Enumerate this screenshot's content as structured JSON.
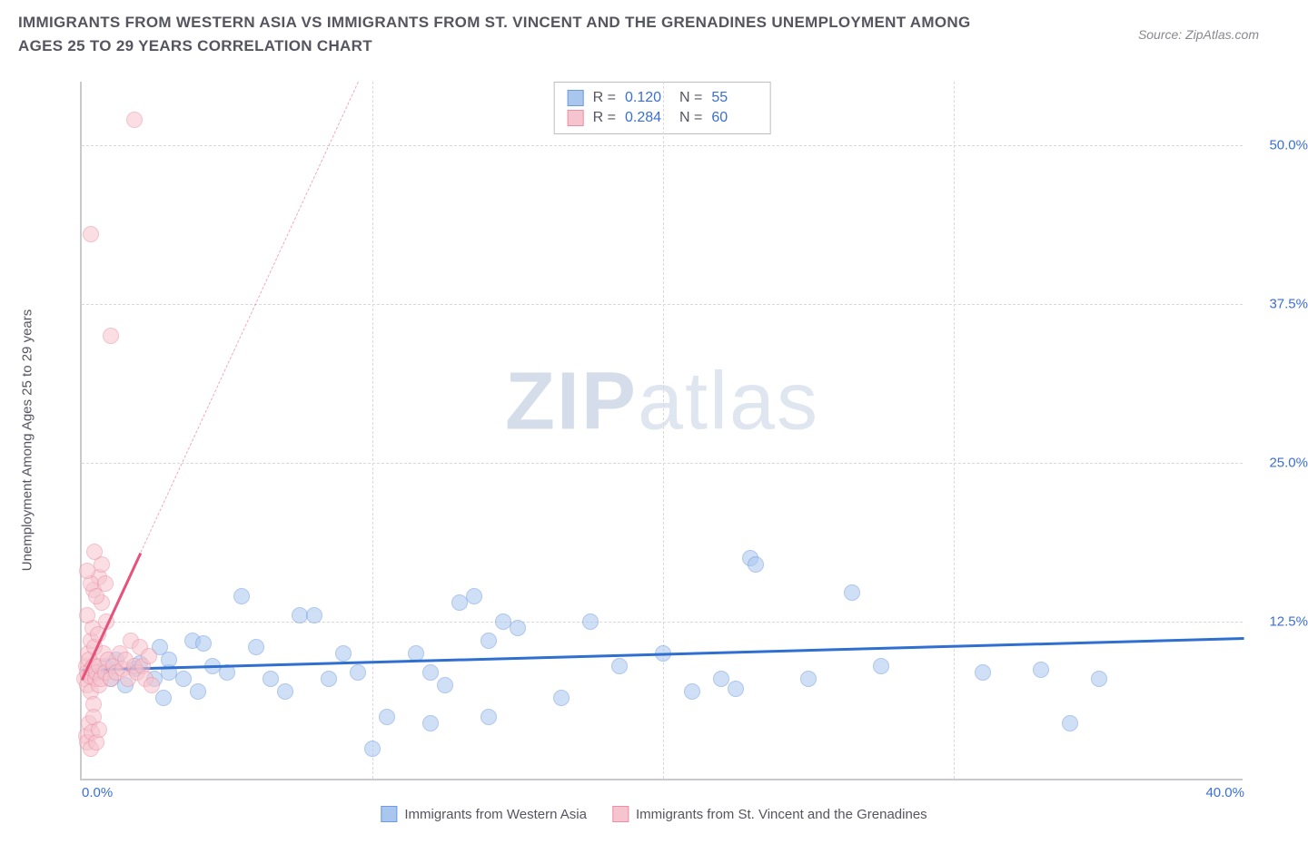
{
  "title": "IMMIGRANTS FROM WESTERN ASIA VS IMMIGRANTS FROM ST. VINCENT AND THE GRENADINES UNEMPLOYMENT AMONG AGES 25 TO 29 YEARS CORRELATION CHART",
  "source": "Source: ZipAtlas.com",
  "ylabel": "Unemployment Among Ages 25 to 29 years",
  "watermark_a": "ZIP",
  "watermark_b": "atlas",
  "chart": {
    "type": "scatter",
    "background_color": "#ffffff",
    "grid_color": "#d8d8de",
    "axis_color": "#c9c9d0",
    "xlim": [
      0,
      40
    ],
    "ylim": [
      0,
      55
    ],
    "xticks": [
      0,
      10,
      20,
      30,
      40
    ],
    "xticklabels": [
      "0.0%",
      "",
      "",
      "",
      "40.0%"
    ],
    "yticks": [
      12.5,
      25,
      37.5,
      50
    ],
    "yticklabels": [
      "12.5%",
      "25.0%",
      "37.5%",
      "50.0%"
    ],
    "tick_color": "#3b6fd6",
    "tick_fontsize": 15,
    "label_fontsize": 15,
    "label_color": "#555560",
    "point_radius": 9,
    "point_opacity": 0.55
  },
  "series": [
    {
      "name": "Immigrants from Western Asia",
      "color_fill": "#a9c6ef",
      "color_stroke": "#6d9be0",
      "trend_color": "#2f6fd0",
      "R": "0.120",
      "N": "55",
      "trend": {
        "x1": 0,
        "y1": 8.8,
        "x2": 40,
        "y2": 11.3
      },
      "points": [
        [
          0.5,
          8.5
        ],
        [
          0.8,
          9.0
        ],
        [
          1.0,
          8.0
        ],
        [
          1.2,
          9.5
        ],
        [
          1.5,
          7.5
        ],
        [
          1.8,
          8.8
        ],
        [
          2.0,
          9.2
        ],
        [
          2.5,
          8.0
        ],
        [
          2.7,
          10.5
        ],
        [
          2.8,
          6.5
        ],
        [
          3.0,
          8.5
        ],
        [
          3.0,
          9.5
        ],
        [
          3.5,
          8.0
        ],
        [
          3.8,
          11.0
        ],
        [
          4.0,
          7.0
        ],
        [
          4.2,
          10.8
        ],
        [
          4.5,
          9.0
        ],
        [
          5.0,
          8.5
        ],
        [
          5.5,
          14.5
        ],
        [
          6.0,
          10.5
        ],
        [
          6.5,
          8.0
        ],
        [
          7.0,
          7.0
        ],
        [
          7.5,
          13.0
        ],
        [
          8.0,
          13.0
        ],
        [
          8.5,
          8.0
        ],
        [
          9.0,
          10.0
        ],
        [
          9.5,
          8.5
        ],
        [
          10.0,
          2.5
        ],
        [
          10.5,
          5.0
        ],
        [
          11.5,
          10.0
        ],
        [
          12.0,
          4.5
        ],
        [
          12.0,
          8.5
        ],
        [
          12.5,
          7.5
        ],
        [
          13.0,
          14.0
        ],
        [
          13.5,
          14.5
        ],
        [
          14.0,
          11.0
        ],
        [
          14.5,
          12.5
        ],
        [
          14.0,
          5.0
        ],
        [
          15.0,
          12.0
        ],
        [
          16.5,
          6.5
        ],
        [
          17.5,
          12.5
        ],
        [
          18.5,
          9.0
        ],
        [
          20.0,
          10.0
        ],
        [
          21.0,
          7.0
        ],
        [
          22.0,
          8.0
        ],
        [
          23.0,
          17.5
        ],
        [
          23.2,
          17.0
        ],
        [
          22.5,
          7.2
        ],
        [
          25.0,
          8.0
        ],
        [
          26.5,
          14.8
        ],
        [
          27.5,
          9.0
        ],
        [
          31.0,
          8.5
        ],
        [
          34.0,
          4.5
        ],
        [
          33.0,
          8.7
        ],
        [
          35.0,
          8.0
        ]
      ]
    },
    {
      "name": "Immigrants from St. Vincent and the Grenadines",
      "color_fill": "#f6c4ce",
      "color_stroke": "#eb8fa4",
      "trend_color": "#e5537a",
      "R": "0.284",
      "N": "60",
      "trend": {
        "x1": 0,
        "y1": 8.0,
        "x2": 9.5,
        "y2": 55
      },
      "points": [
        [
          0.1,
          8.0
        ],
        [
          0.15,
          9.0
        ],
        [
          0.18,
          7.5
        ],
        [
          0.2,
          8.5
        ],
        [
          0.22,
          10.0
        ],
        [
          0.25,
          9.5
        ],
        [
          0.28,
          8.2
        ],
        [
          0.3,
          11.0
        ],
        [
          0.32,
          7.0
        ],
        [
          0.35,
          8.8
        ],
        [
          0.38,
          12.0
        ],
        [
          0.4,
          9.0
        ],
        [
          0.42,
          6.0
        ],
        [
          0.45,
          10.5
        ],
        [
          0.48,
          8.0
        ],
        [
          0.2,
          13.0
        ],
        [
          0.5,
          8.5
        ],
        [
          0.55,
          11.5
        ],
        [
          0.58,
          7.5
        ],
        [
          0.6,
          9.0
        ],
        [
          0.65,
          8.0
        ],
        [
          0.7,
          14.0
        ],
        [
          0.75,
          10.0
        ],
        [
          0.8,
          8.5
        ],
        [
          0.85,
          12.5
        ],
        [
          0.9,
          9.5
        ],
        [
          0.15,
          3.5
        ],
        [
          0.2,
          3.0
        ],
        [
          0.25,
          4.5
        ],
        [
          0.3,
          2.5
        ],
        [
          0.35,
          3.8
        ],
        [
          0.4,
          5.0
        ],
        [
          0.5,
          3.0
        ],
        [
          0.6,
          4.0
        ],
        [
          0.4,
          15.0
        ],
        [
          0.6,
          16.0
        ],
        [
          0.3,
          15.5
        ],
        [
          0.5,
          14.5
        ],
        [
          0.7,
          17.0
        ],
        [
          0.2,
          16.5
        ],
        [
          0.45,
          18.0
        ],
        [
          0.8,
          15.5
        ],
        [
          1.0,
          35.0
        ],
        [
          0.3,
          43.0
        ],
        [
          1.8,
          52.0
        ],
        [
          1.0,
          8.0
        ],
        [
          1.1,
          9.0
        ],
        [
          1.2,
          8.5
        ],
        [
          1.3,
          10.0
        ],
        [
          1.4,
          8.8
        ],
        [
          1.5,
          9.5
        ],
        [
          1.6,
          8.0
        ],
        [
          1.7,
          11.0
        ],
        [
          1.8,
          9.0
        ],
        [
          1.9,
          8.5
        ],
        [
          2.0,
          10.5
        ],
        [
          2.1,
          9.0
        ],
        [
          2.2,
          8.0
        ],
        [
          2.3,
          9.8
        ],
        [
          2.4,
          7.5
        ]
      ]
    }
  ],
  "legend": {
    "stats_label_R": "R =",
    "stats_label_N": "N ="
  }
}
